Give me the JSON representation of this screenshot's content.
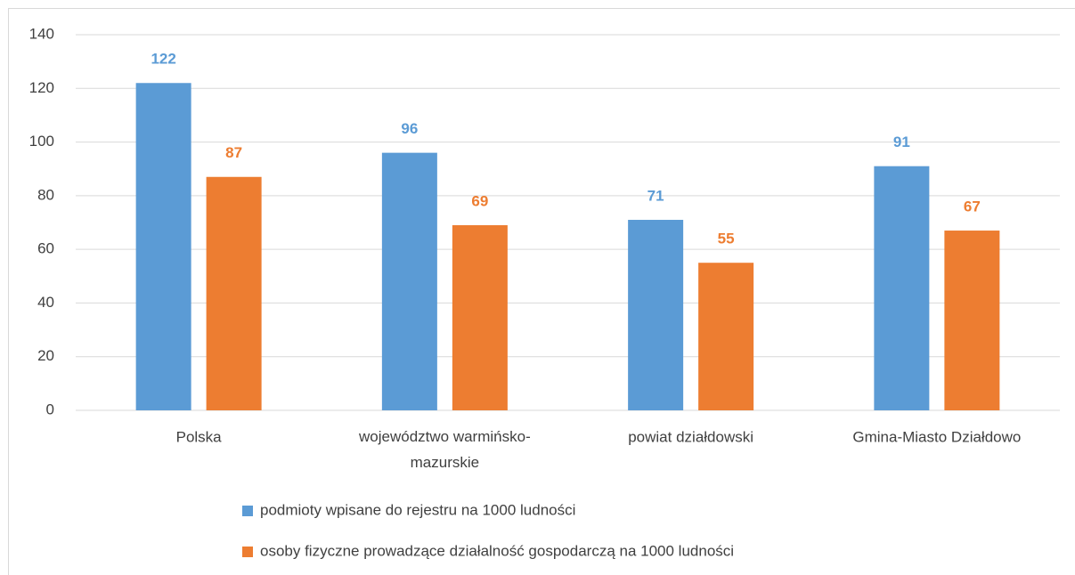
{
  "chart_data": {
    "type": "bar",
    "categories": [
      "Polska",
      "województwo warmińsko-mazurskie",
      "powiat działdowski",
      "Gmina-Miasto Działdowo"
    ],
    "series": [
      {
        "name": "podmioty wpisane do rejestru na 1000 ludności",
        "color": "#5b9bd5",
        "values": [
          122,
          96,
          71,
          91
        ]
      },
      {
        "name": "osoby fizyczne prowadzące działalność gospodarczą na 1000 ludności",
        "color": "#ed7d31",
        "values": [
          87,
          69,
          55,
          67
        ]
      }
    ],
    "ylim": [
      0,
      140
    ],
    "yticks": [
      0,
      20,
      40,
      60,
      80,
      100,
      120,
      140
    ],
    "grid": true,
    "legend": "bottom"
  }
}
